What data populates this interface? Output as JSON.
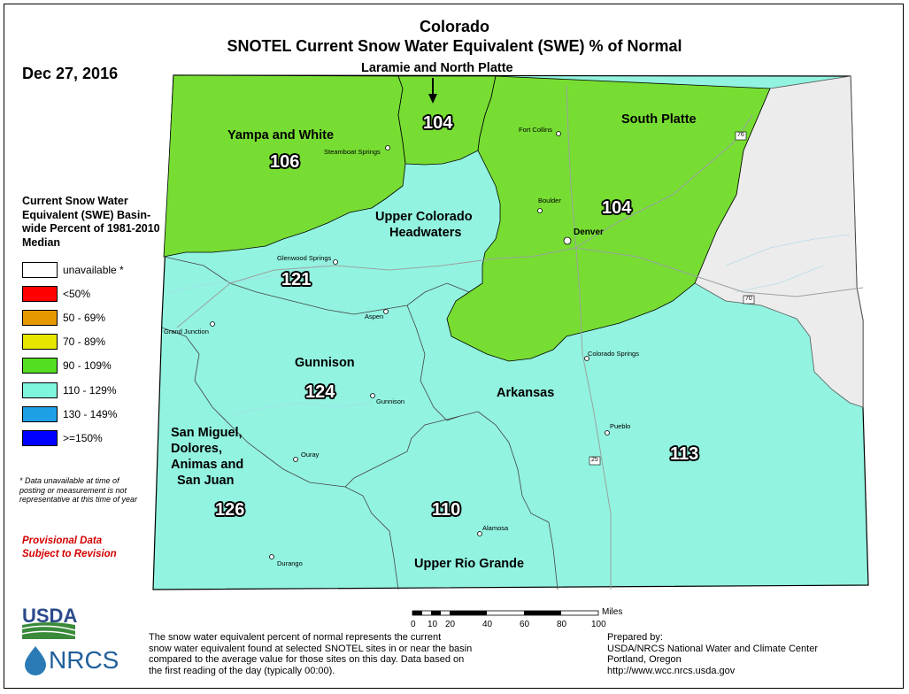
{
  "header": {
    "title_line1": "Colorado",
    "title_line2": "SNOTEL Current Snow Water Equivalent (SWE) % of Normal",
    "date": "Dec 27, 2016",
    "arrow_label": "Laramie and North Platte"
  },
  "legend": {
    "title": "Current Snow Water Equivalent (SWE) Basin-wide Percent of 1981-2010 Median",
    "items": [
      {
        "label": "unavailable *",
        "color": "#ffffff"
      },
      {
        "label": "<50%",
        "color": "#ff0000"
      },
      {
        "label": "50 - 69%",
        "color": "#e69800"
      },
      {
        "label": "70 - 89%",
        "color": "#e6e600"
      },
      {
        "label": "90 - 109%",
        "color": "#55dd22"
      },
      {
        "label": "110 - 129%",
        "color": "#7ff5de"
      },
      {
        "label": "130 - 149%",
        "color": "#1ea0e6"
      },
      {
        "label": ">=150%",
        "color": "#0000ff"
      }
    ],
    "footnote": "*  Data unavailable at time of posting or measurement is not representative at this time of year"
  },
  "provisional": {
    "line1": "Provisional Data",
    "line2": "Subject to Revision"
  },
  "basins": [
    {
      "name": "Yampa and White",
      "value": "106"
    },
    {
      "name": "",
      "value": "104"
    },
    {
      "name": "South Platte",
      "value": "104"
    },
    {
      "name": "Upper Colorado Headwaters",
      "value": "121"
    },
    {
      "name": "Gunnison",
      "value": "124"
    },
    {
      "name": "Arkansas",
      "value": "113"
    },
    {
      "name": "San Miguel, Dolores, Animas and San Juan",
      "value": "126"
    },
    {
      "name": "Upper Rio Grande",
      "value": "110"
    }
  ],
  "basin_name_lines": {
    "upper_colorado_1": "Upper Colorado",
    "upper_colorado_2": "Headwaters",
    "sanmiguel_1": "San Miguel,",
    "sanmiguel_2": "Dolores,",
    "sanmiguel_3": "Animas and",
    "sanmiguel_4": "San Juan"
  },
  "cities": [
    {
      "name": "Fort Collins"
    },
    {
      "name": "Steamboat Springs"
    },
    {
      "name": "Boulder"
    },
    {
      "name": "Denver"
    },
    {
      "name": "Glenwood Springs"
    },
    {
      "name": "Aspen"
    },
    {
      "name": "Grand Junction"
    },
    {
      "name": "Colorado Springs"
    },
    {
      "name": "Gunnison"
    },
    {
      "name": "Pueblo"
    },
    {
      "name": "Ouray"
    },
    {
      "name": "Alamosa"
    },
    {
      "name": "Durango"
    }
  ],
  "highways": [
    "76",
    "70",
    "25"
  ],
  "scale": {
    "ticks": [
      "0",
      "10",
      "20",
      "40",
      "60",
      "80",
      "100"
    ],
    "unit": "Miles"
  },
  "description": {
    "line1": "The snow water equivalent percent of normal represents the current",
    "line2": "snow water equivalent found at selected SNOTEL sites in or near the basin",
    "line3": "compared to the average value for those sites on this day. Data based on",
    "line4": "the first reading of the day (typically 00:00)."
  },
  "prepared": {
    "line1": "Prepared by:",
    "line2": "USDA/NRCS National Water and Climate Center",
    "line3": "Portland, Oregon",
    "line4": "http://www.wcc.nrcs.usda.gov"
  },
  "logos": {
    "usda": "USDA",
    "nrcs": "NRCS"
  },
  "colors": {
    "green": "#77dd33",
    "cyan": "#92f3e0",
    "unavailable": "#ececec"
  }
}
